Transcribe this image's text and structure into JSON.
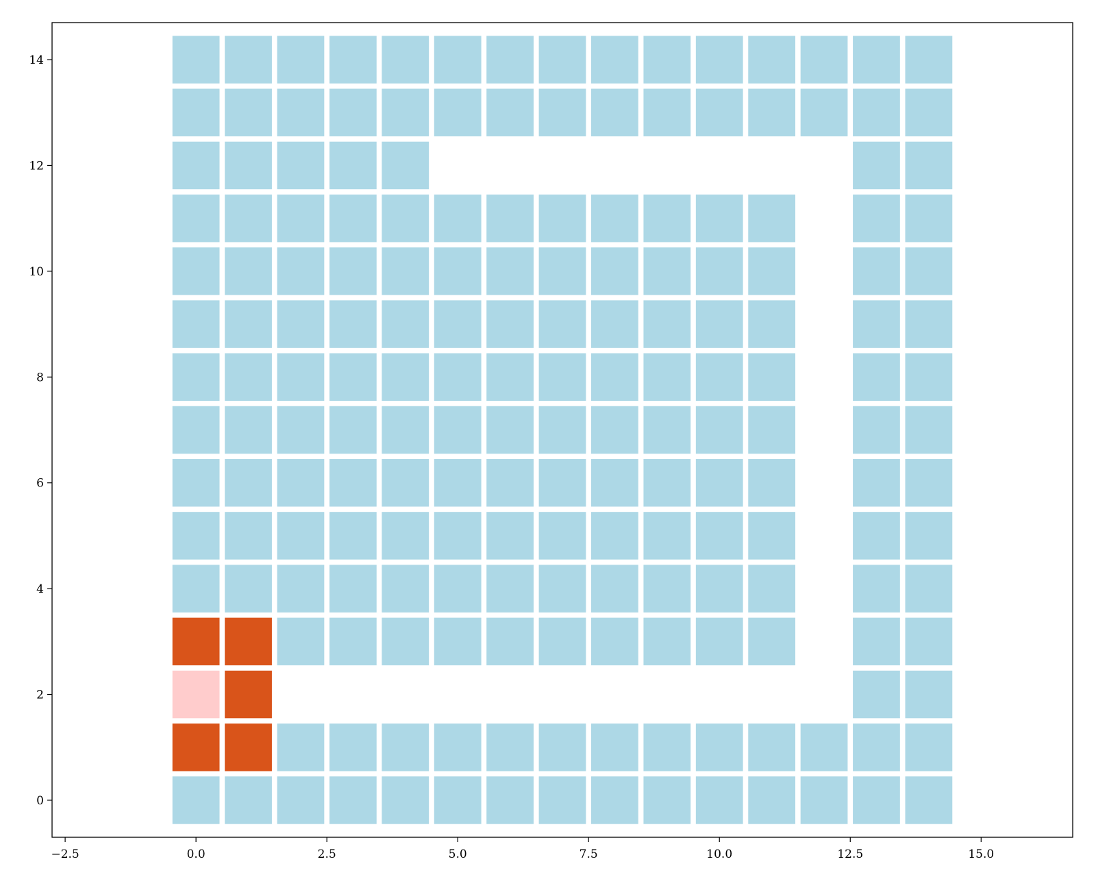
{
  "chart_data": {
    "type": "heatmap",
    "title": "",
    "xlabel": "",
    "ylabel": "",
    "xlim": [
      -2.75,
      16.75
    ],
    "ylim": [
      -0.7,
      14.7
    ],
    "xticks": [
      -2.5,
      0.0,
      2.5,
      5.0,
      7.5,
      10.0,
      12.5,
      15.0
    ],
    "xtick_labels": [
      "−2.5",
      "0.0",
      "2.5",
      "5.0",
      "7.5",
      "10.0",
      "12.5",
      "15.0"
    ],
    "yticks": [
      0,
      2,
      4,
      6,
      8,
      10,
      12,
      14
    ],
    "ytick_labels": [
      "0",
      "2",
      "4",
      "6",
      "8",
      "10",
      "12",
      "14"
    ],
    "grid": false,
    "legend": "none",
    "colors": {
      "background": "#ffffff",
      "cell_blue": "#add8e6",
      "cell_orange": "#d9541a",
      "cell_pink": "#ffcccc",
      "gap": "#ffffff"
    },
    "cell_size": 0.9,
    "row_order": "top_to_bottom_y14_to_y0",
    "legend_codes": {
      "B": "cell_blue",
      "O": "cell_orange",
      "P": "cell_pink",
      ".": "empty"
    },
    "grid_rows": [
      "BBBBBBBBBBBBBBB",
      "BBBBBBBBBBBBBBB",
      "BBBBB........BB",
      "BBBBBBBBBBBB.BB",
      "BBBBBBBBBBBB.BB",
      "BBBBBBBBBBBB.BB",
      "BBBBBBBBBBBB.BB",
      "BBBBBBBBBBBB.BB",
      "BBBBBBBBBBBB.BB",
      "BBBBBBBBBBBB.BB",
      "BBBBBBBBBBBB.BB",
      "OOBBBBBBBBBB.BB",
      "PO...........BB",
      "OOBBBBBBBBBBBBB",
      "BBBBBBBBBBBBBBB"
    ]
  }
}
